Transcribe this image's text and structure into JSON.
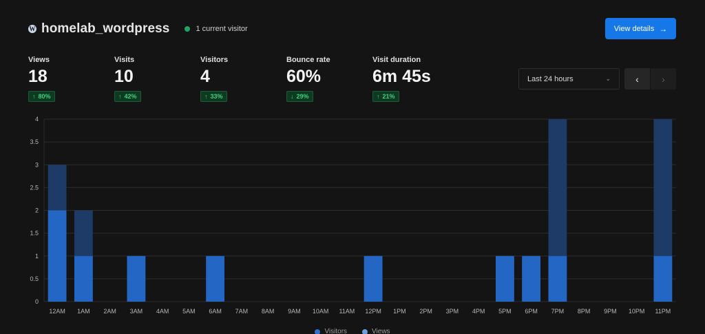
{
  "header": {
    "site_name": "homelab_wordpress",
    "current_visitors": "1 current visitor",
    "details_button": "View details",
    "details_arrow": "→",
    "wp_icon_glyph": "W"
  },
  "metrics": [
    {
      "label": "Views",
      "value": "18",
      "change": "80%",
      "direction": "↑"
    },
    {
      "label": "Visits",
      "value": "10",
      "change": "42%",
      "direction": "↑"
    },
    {
      "label": "Visitors",
      "value": "4",
      "change": "33%",
      "direction": "↑"
    },
    {
      "label": "Bounce rate",
      "value": "60%",
      "change": "29%",
      "direction": "↓"
    },
    {
      "label": "Visit duration",
      "value": "6m 45s",
      "change": "21%",
      "direction": "↑"
    }
  ],
  "controls": {
    "range": "Last 24 hours",
    "prev_icon": "‹",
    "next_icon": "›",
    "chevron": "⌄"
  },
  "colors": {
    "visitors": "#2366c4",
    "views": "#1e3a66",
    "grid": "#2c2c2c",
    "axis_text": "#b5b5b5"
  },
  "chart_data": {
    "type": "bar",
    "stacked_overlay": true,
    "categories": [
      "12AM",
      "1AM",
      "2AM",
      "3AM",
      "4AM",
      "5AM",
      "6AM",
      "7AM",
      "8AM",
      "9AM",
      "10AM",
      "11AM",
      "12PM",
      "1PM",
      "2PM",
      "3PM",
      "4PM",
      "5PM",
      "6PM",
      "7PM",
      "8PM",
      "9PM",
      "10PM",
      "11PM"
    ],
    "series": [
      {
        "name": "Visitors",
        "values": [
          2,
          1,
          0,
          1,
          0,
          0,
          1,
          0,
          0,
          0,
          0,
          0,
          1,
          0,
          0,
          0,
          0,
          1,
          1,
          1,
          0,
          0,
          0,
          1
        ]
      },
      {
        "name": "Views",
        "values": [
          3,
          2,
          0,
          1,
          0,
          0,
          1,
          0,
          0,
          0,
          0,
          0,
          1,
          0,
          0,
          0,
          0,
          1,
          1,
          4,
          0,
          0,
          0,
          4
        ]
      }
    ],
    "yticks": [
      "0",
      "0.5",
      "1",
      "1.5",
      "2",
      "2.5",
      "3",
      "3.5",
      "4"
    ],
    "ylim": [
      0,
      4
    ],
    "grid": true,
    "legend": "bottom-center"
  }
}
